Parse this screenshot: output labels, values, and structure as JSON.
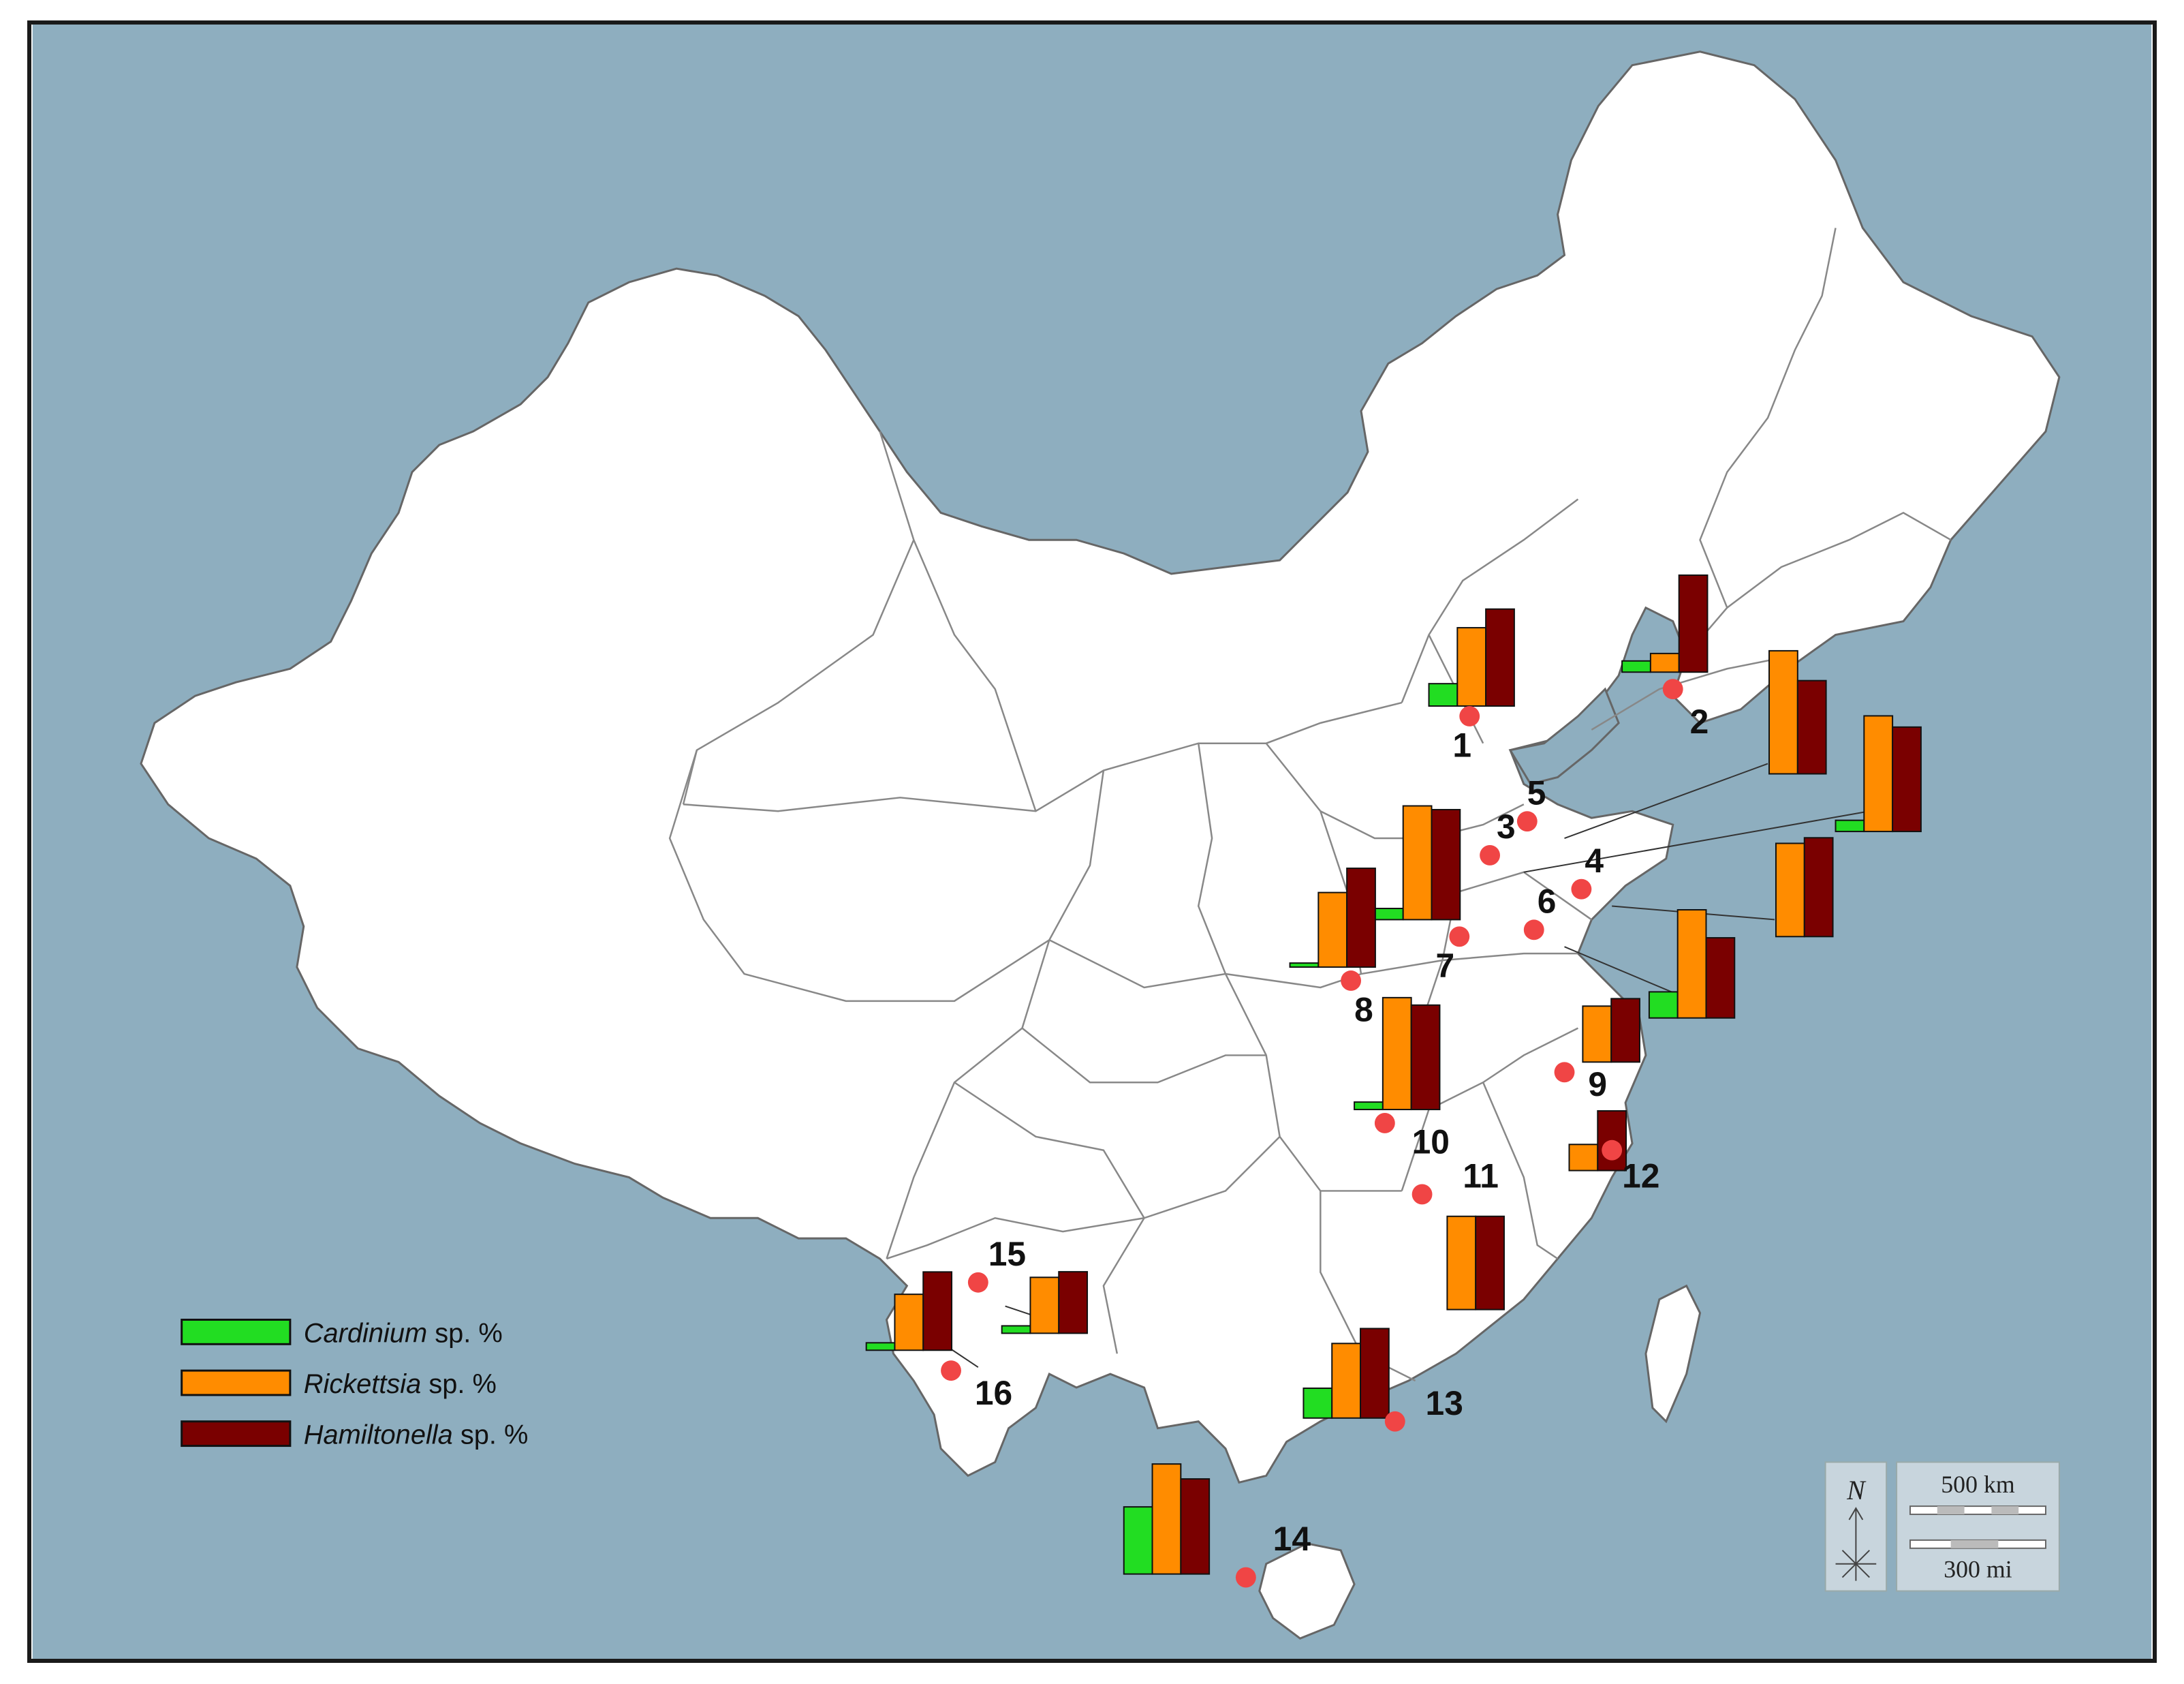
{
  "legend": {
    "items": [
      {
        "key": "cardinium",
        "genus": "Cardinium",
        "suffix": " sp. %",
        "color": "#22dd22"
      },
      {
        "key": "rickettsia",
        "genus": "Rickettsia",
        "suffix": " sp. %",
        "color": "#ff8c00"
      },
      {
        "key": "hamiltonella",
        "genus": "Hamiltonella",
        "suffix": " sp. %",
        "color": "#7a0000"
      }
    ]
  },
  "colors": {
    "sea": "#8eaebf",
    "land": "#ffffff",
    "border": "#777777",
    "site_dot": "#f04545"
  },
  "sites": [
    {
      "label": "1"
    },
    {
      "label": "2"
    },
    {
      "label": "3"
    },
    {
      "label": "4"
    },
    {
      "label": "5"
    },
    {
      "label": "6"
    },
    {
      "label": "7"
    },
    {
      "label": "8"
    },
    {
      "label": "9"
    },
    {
      "label": "10"
    },
    {
      "label": "11"
    },
    {
      "label": "12"
    },
    {
      "label": "13"
    },
    {
      "label": "14"
    },
    {
      "label": "15"
    },
    {
      "label": "16"
    }
  ],
  "scale": {
    "km_label": "500 km",
    "mi_label": "300 mi"
  },
  "north": {
    "label": "N"
  },
  "chart_data": {
    "type": "bar",
    "series_order": [
      "Cardinium",
      "Rickettsia",
      "Hamiltonella"
    ],
    "charts": [
      {
        "site": "1",
        "values": [
          12,
          42,
          52
        ]
      },
      {
        "site": "2",
        "values": [
          6,
          10,
          52
        ]
      },
      {
        "site": "3",
        "values": [
          6,
          62,
          56
        ]
      },
      {
        "site": "4",
        "values": [
          0,
          50,
          53
        ]
      },
      {
        "site": "5",
        "values": [
          0,
          66,
          50
        ]
      },
      {
        "site": "6",
        "values": [
          14,
          58,
          43
        ]
      },
      {
        "site": "7",
        "values": [
          6,
          61,
          59
        ]
      },
      {
        "site": "8",
        "values": [
          2,
          40,
          53
        ]
      },
      {
        "site": "9",
        "values": [
          0,
          30,
          34
        ]
      },
      {
        "site": "10",
        "values": [
          4,
          60,
          56
        ]
      },
      {
        "site": "11",
        "values": [
          0,
          50,
          50
        ]
      },
      {
        "site": "12",
        "values": [
          0,
          14,
          32
        ]
      },
      {
        "site": "13",
        "values": [
          16,
          40,
          48
        ]
      },
      {
        "site": "14",
        "values": [
          36,
          59,
          51
        ]
      },
      {
        "site": "15",
        "values": [
          4,
          30,
          33
        ]
      },
      {
        "site": "16",
        "values": [
          4,
          30,
          42
        ]
      }
    ]
  }
}
